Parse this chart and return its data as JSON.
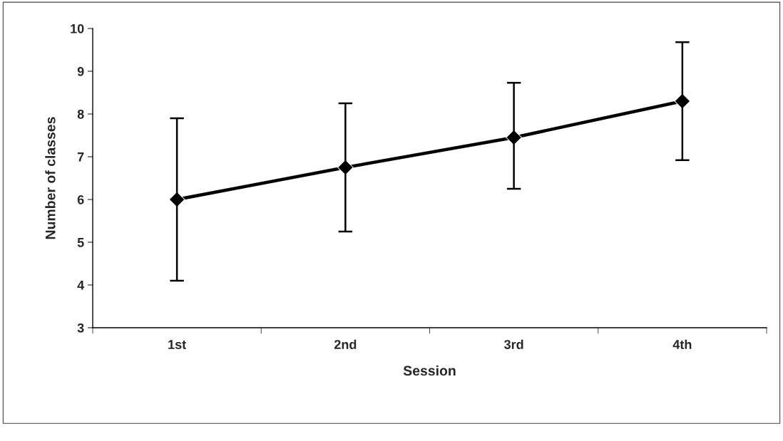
{
  "chart_data": {
    "type": "line",
    "xlabel": "Session",
    "ylabel": "Number of classes",
    "categories": [
      "1st",
      "2nd",
      "3rd",
      "4th"
    ],
    "series": [
      {
        "color": "#000000",
        "values": [
          6.0,
          6.75,
          7.45,
          8.3
        ],
        "errors": [
          [
            4.1,
            7.9
          ],
          [
            5.25,
            8.25
          ],
          [
            6.25,
            8.73
          ],
          [
            6.92,
            9.68
          ]
        ]
      }
    ],
    "ylim": [
      3,
      10
    ],
    "yticks": [
      3,
      4,
      5,
      6,
      7,
      8,
      9,
      10
    ],
    "grid": false,
    "marker": "diamond",
    "line_style": "solid"
  }
}
